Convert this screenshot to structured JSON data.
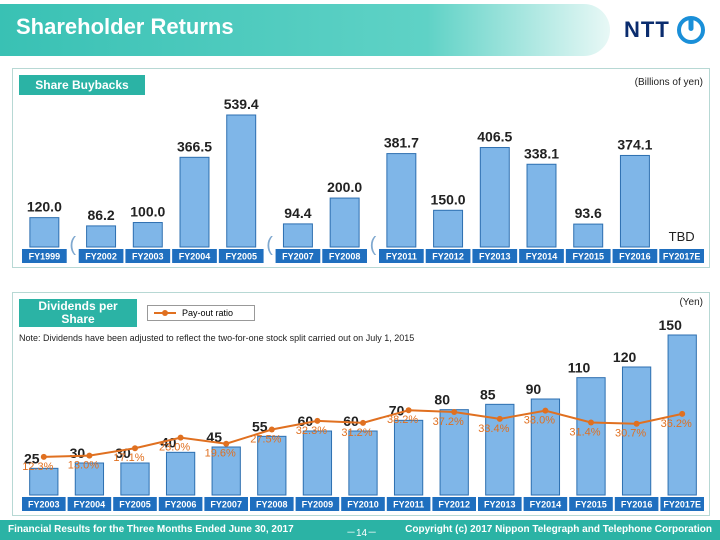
{
  "header": {
    "title": "Shareholder Returns",
    "logo_text": "NTT"
  },
  "footer": {
    "left": "Financial Results for the Three Months Ended June 30, 2017",
    "page": "－14－",
    "right": "Copyright (c) 2017 Nippon Telegraph and Telephone Corporation"
  },
  "colors": {
    "accent": "#2bb3a5",
    "bar": "#7fb6e8",
    "line": "#e07020",
    "tick": "#1f6fbf"
  },
  "chart_data": [
    {
      "type": "bar",
      "title": "Share Buybacks",
      "unit": "(Billions of yen)",
      "categories": [
        "FY1999",
        "FY2002",
        "FY2003",
        "FY2004",
        "FY2005",
        "FY2007",
        "FY2008",
        "FY2011",
        "FY2012",
        "FY2013",
        "FY2014",
        "FY2015",
        "FY2016",
        "FY2017E"
      ],
      "values": [
        120.0,
        86.2,
        100.0,
        366.5,
        539.4,
        94.4,
        200.0,
        381.7,
        150.0,
        406.5,
        338.1,
        93.6,
        374.1,
        null
      ],
      "value_labels": [
        "120.0",
        "86.2",
        "100.0",
        "366.5",
        "539.4",
        "94.4",
        "200.0",
        "381.7",
        "150.0",
        "406.5",
        "338.1",
        "93.6",
        "374.1",
        "TBD"
      ],
      "axis_breaks_after": [
        "FY1999",
        "FY2005",
        "FY2008"
      ]
    },
    {
      "type": "bar",
      "title": "Dividends per Share",
      "unit": "(Yen)",
      "note": "Note: Dividends have been adjusted to reflect the two-for-one stock split carried out on July 1, 2015",
      "categories": [
        "FY2003",
        "FY2004",
        "FY2005",
        "FY2006",
        "FY2007",
        "FY2008",
        "FY2009",
        "FY2010",
        "FY2011",
        "FY2012",
        "FY2013",
        "FY2014",
        "FY2015",
        "FY2016",
        "FY2017E"
      ],
      "values": [
        25,
        30,
        30,
        40,
        45,
        55,
        60,
        60,
        70,
        80,
        85,
        90,
        110,
        120,
        150
      ],
      "series": [
        {
          "name": "Pay-out ratio",
          "type": "line",
          "values": [
            12.3,
            13.0,
            17.1,
            23.0,
            19.6,
            27.5,
            32.3,
            31.2,
            38.2,
            37.2,
            33.4,
            38.0,
            31.4,
            30.7,
            36.2
          ],
          "labels": [
            "12.3%",
            "13.0%",
            "17.1%",
            "23.0%",
            "19.6%",
            "27.5%",
            "32.3%",
            "31.2%",
            "38.2%",
            "37.2%",
            "33.4%",
            "38.0%",
            "31.4%",
            "30.7%",
            "36.2%"
          ]
        }
      ]
    }
  ]
}
